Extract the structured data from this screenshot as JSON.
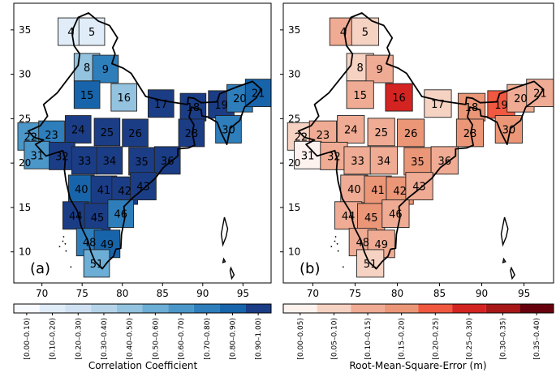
{
  "panels": [
    {
      "label": "(a)",
      "xticks": [
        70,
        75,
        80,
        85,
        90,
        95
      ],
      "yticks": [
        10,
        15,
        20,
        25,
        30,
        35
      ],
      "colorbar_title": "Correlation Coefficient",
      "colorbar_labels": [
        "[0.00–0.10)",
        "[0.10–0.20)",
        "[0.20–0.30)",
        "[0.30–0.40)",
        "[0.40–0.50)",
        "[0.50–0.60)",
        "[0.60–0.70)",
        "[0.70–0.80)",
        "[0.80–0.90)",
        "[0.90–1.00)"
      ],
      "colorbar_colors": [
        "#f7fbff",
        "#e0ecf8",
        "#cfe1f2",
        "#b5d4e9",
        "#93c3df",
        "#6caed6",
        "#4b97c9",
        "#2e7ebc",
        "#1764ab",
        "#1b3d86"
      ]
    },
    {
      "label": "(b)",
      "xticks": [
        70,
        75,
        80,
        85,
        90,
        95
      ],
      "yticks": [
        10,
        15,
        20,
        25,
        30,
        35
      ],
      "colorbar_title": "Root-Mean-Square-Error (m)",
      "colorbar_labels": [
        "[0.00–0.05)",
        "[0.05–0.10)",
        "[0.10–0.15)",
        "[0.15–0.20)",
        "[0.20–0.25)",
        "[0.25–0.30)",
        "[0.30–0.35)",
        "[0.35–0.40)"
      ],
      "colorbar_colors": [
        "#fdf2ee",
        "#f6d2c3",
        "#efab93",
        "#ea9677",
        "#f0583f",
        "#d42421",
        "#a71717",
        "#67000d"
      ]
    }
  ],
  "chart_data": [
    {
      "type": "heatmap",
      "panel": "(a)",
      "title": "",
      "xlabel": "",
      "ylabel": "",
      "xlim": [
        66.5,
        98.5
      ],
      "ylim": [
        6.5,
        38.0
      ],
      "value_unit": "Correlation Coefficient",
      "regions": [
        {
          "id": "4",
          "lon": 73.6,
          "lat": 34.8,
          "bin": 1
        },
        {
          "id": "5",
          "lon": 76.2,
          "lat": 34.8,
          "bin": 1
        },
        {
          "id": "8",
          "lon": 75.6,
          "lat": 30.8,
          "bin": 4
        },
        {
          "id": "9",
          "lon": 77.9,
          "lat": 30.6,
          "bin": 7
        },
        {
          "id": "15",
          "lon": 75.6,
          "lat": 27.7,
          "bin": 8
        },
        {
          "id": "16",
          "lon": 80.2,
          "lat": 27.4,
          "bin": 4
        },
        {
          "id": "17",
          "lon": 84.8,
          "lat": 26.7,
          "bin": 9
        },
        {
          "id": "18",
          "lon": 88.8,
          "lat": 26.3,
          "bin": 9
        },
        {
          "id": "19",
          "lon": 92.3,
          "lat": 26.6,
          "bin": 9
        },
        {
          "id": "20",
          "lon": 94.6,
          "lat": 27.3,
          "bin": 7
        },
        {
          "id": "21",
          "lon": 96.9,
          "lat": 27.9,
          "bin": 8
        },
        {
          "id": "22",
          "lon": 68.6,
          "lat": 23.0,
          "bin": 6
        },
        {
          "id": "23",
          "lon": 71.2,
          "lat": 23.2,
          "bin": 7
        },
        {
          "id": "24",
          "lon": 74.5,
          "lat": 23.8,
          "bin": 9
        },
        {
          "id": "25",
          "lon": 78.1,
          "lat": 23.5,
          "bin": 9
        },
        {
          "id": "26",
          "lon": 81.6,
          "lat": 23.4,
          "bin": 9
        },
        {
          "id": "28",
          "lon": 88.6,
          "lat": 23.4,
          "bin": 9
        },
        {
          "id": "30",
          "lon": 93.2,
          "lat": 23.8,
          "bin": 7
        },
        {
          "id": "31",
          "lon": 69.4,
          "lat": 20.9,
          "bin": 6
        },
        {
          "id": "32",
          "lon": 72.5,
          "lat": 20.8,
          "bin": 9
        },
        {
          "id": "33",
          "lon": 75.3,
          "lat": 20.3,
          "bin": 9
        },
        {
          "id": "34",
          "lon": 78.4,
          "lat": 20.3,
          "bin": 9
        },
        {
          "id": "35",
          "lon": 82.4,
          "lat": 20.2,
          "bin": 9
        },
        {
          "id": "36",
          "lon": 85.6,
          "lat": 20.3,
          "bin": 9
        },
        {
          "id": "40",
          "lon": 74.9,
          "lat": 17.1,
          "bin": 8
        },
        {
          "id": "41",
          "lon": 77.7,
          "lat": 17.0,
          "bin": 9
        },
        {
          "id": "42",
          "lon": 80.3,
          "lat": 16.9,
          "bin": 9
        },
        {
          "id": "43",
          "lon": 82.6,
          "lat": 17.4,
          "bin": 9
        },
        {
          "id": "44",
          "lon": 74.2,
          "lat": 14.1,
          "bin": 9
        },
        {
          "id": "45",
          "lon": 76.9,
          "lat": 13.9,
          "bin": 9
        },
        {
          "id": "46",
          "lon": 79.8,
          "lat": 14.3,
          "bin": 7
        },
        {
          "id": "48",
          "lon": 75.9,
          "lat": 11.1,
          "bin": 7
        },
        {
          "id": "49",
          "lon": 78.1,
          "lat": 10.9,
          "bin": 8
        },
        {
          "id": "51",
          "lon": 76.8,
          "lat": 8.7,
          "bin": 5
        }
      ]
    },
    {
      "type": "heatmap",
      "panel": "(b)",
      "title": "",
      "xlabel": "",
      "ylabel": "",
      "xlim": [
        66.5,
        98.5
      ],
      "ylim": [
        6.5,
        38.0
      ],
      "value_unit": "Root-Mean-Square-Error (m)",
      "regions": [
        {
          "id": "4",
          "lon": 73.6,
          "lat": 34.8,
          "bin": 2
        },
        {
          "id": "5",
          "lon": 76.2,
          "lat": 34.8,
          "bin": 1
        },
        {
          "id": "8",
          "lon": 75.6,
          "lat": 30.8,
          "bin": 1
        },
        {
          "id": "9",
          "lon": 77.9,
          "lat": 30.6,
          "bin": 2
        },
        {
          "id": "15",
          "lon": 75.6,
          "lat": 27.7,
          "bin": 2
        },
        {
          "id": "16",
          "lon": 80.2,
          "lat": 27.4,
          "bin": 5
        },
        {
          "id": "17",
          "lon": 84.8,
          "lat": 26.7,
          "bin": 1
        },
        {
          "id": "18",
          "lon": 88.8,
          "lat": 26.3,
          "bin": 3
        },
        {
          "id": "19",
          "lon": 92.3,
          "lat": 26.6,
          "bin": 4
        },
        {
          "id": "20",
          "lon": 94.6,
          "lat": 27.3,
          "bin": 2
        },
        {
          "id": "21",
          "lon": 96.9,
          "lat": 27.9,
          "bin": 2
        },
        {
          "id": "22",
          "lon": 68.6,
          "lat": 23.0,
          "bin": 1
        },
        {
          "id": "23",
          "lon": 71.2,
          "lat": 23.2,
          "bin": 2
        },
        {
          "id": "24",
          "lon": 74.5,
          "lat": 23.8,
          "bin": 2
        },
        {
          "id": "25",
          "lon": 78.1,
          "lat": 23.5,
          "bin": 2
        },
        {
          "id": "26",
          "lon": 81.6,
          "lat": 23.4,
          "bin": 3
        },
        {
          "id": "28",
          "lon": 88.6,
          "lat": 23.4,
          "bin": 3
        },
        {
          "id": "30",
          "lon": 93.2,
          "lat": 23.8,
          "bin": 3
        },
        {
          "id": "31",
          "lon": 69.4,
          "lat": 20.9,
          "bin": 0
        },
        {
          "id": "32",
          "lon": 72.5,
          "lat": 20.8,
          "bin": 2
        },
        {
          "id": "33",
          "lon": 75.3,
          "lat": 20.3,
          "bin": 2
        },
        {
          "id": "34",
          "lon": 78.4,
          "lat": 20.3,
          "bin": 2
        },
        {
          "id": "35",
          "lon": 82.4,
          "lat": 20.2,
          "bin": 3
        },
        {
          "id": "36",
          "lon": 85.6,
          "lat": 20.3,
          "bin": 2
        },
        {
          "id": "40",
          "lon": 74.9,
          "lat": 17.1,
          "bin": 2
        },
        {
          "id": "41",
          "lon": 77.7,
          "lat": 17.0,
          "bin": 3
        },
        {
          "id": "42",
          "lon": 80.3,
          "lat": 16.9,
          "bin": 3
        },
        {
          "id": "43",
          "lon": 82.6,
          "lat": 17.4,
          "bin": 2
        },
        {
          "id": "44",
          "lon": 74.2,
          "lat": 14.1,
          "bin": 2
        },
        {
          "id": "45",
          "lon": 76.9,
          "lat": 13.9,
          "bin": 3
        },
        {
          "id": "46",
          "lon": 79.8,
          "lat": 14.3,
          "bin": 2
        },
        {
          "id": "48",
          "lon": 75.9,
          "lat": 11.1,
          "bin": 2
        },
        {
          "id": "49",
          "lon": 78.1,
          "lat": 10.9,
          "bin": 2
        },
        {
          "id": "51",
          "lon": 76.8,
          "lat": 8.7,
          "bin": 1
        }
      ]
    }
  ]
}
